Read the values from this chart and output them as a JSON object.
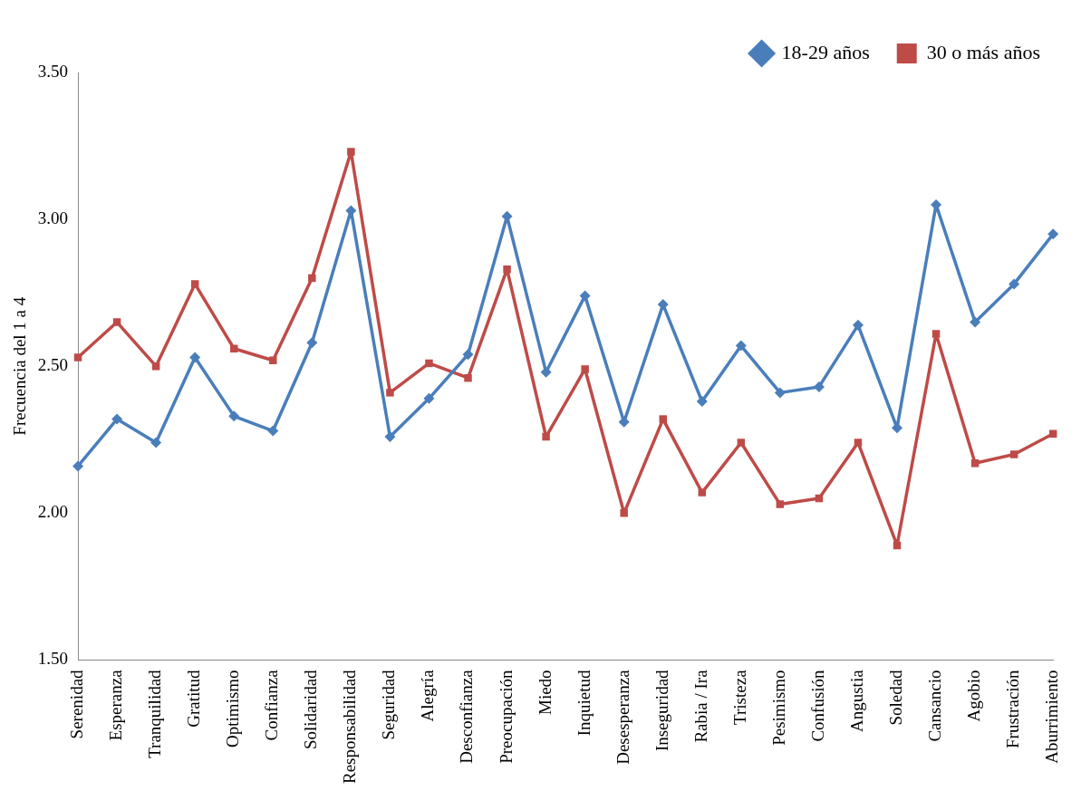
{
  "chart_data": {
    "type": "line",
    "ylabel": "Frecuencia del 1 a 4",
    "categories": [
      "Serenidad",
      "Esperanza",
      "Tranquilidad",
      "Gratitud",
      "Optimismo",
      "Confianza",
      "Solidaridad",
      "Responsabilidad",
      "Seguridad",
      "Alegría",
      "Desconfianza",
      "Preocupación",
      "Miedo",
      "Inquietud",
      "Desesperanza",
      "Inseguridad",
      "Rabia / Ira",
      "Tristeza",
      "Pesimismo",
      "Confusión",
      "Angustia",
      "Soledad",
      "Cansancio",
      "Agobio",
      "Frustración",
      "Aburrimiento"
    ],
    "series": [
      {
        "name": "18-29 años",
        "color": "#4a7ebb",
        "marker": "diamond",
        "values": [
          2.16,
          2.32,
          2.24,
          2.53,
          2.33,
          2.28,
          2.58,
          3.03,
          2.26,
          2.39,
          2.54,
          3.01,
          2.48,
          2.74,
          2.31,
          2.71,
          2.38,
          2.57,
          2.41,
          2.43,
          2.64,
          2.29,
          3.05,
          2.65,
          2.78,
          2.95
        ]
      },
      {
        "name": "30 o más años",
        "color": "#be4b48",
        "marker": "square",
        "values": [
          2.53,
          2.65,
          2.5,
          2.78,
          2.56,
          2.52,
          2.8,
          3.23,
          2.41,
          2.51,
          2.46,
          2.83,
          2.26,
          2.49,
          2.0,
          2.32,
          2.07,
          2.24,
          2.03,
          2.05,
          2.24,
          1.89,
          2.61,
          2.17,
          2.2,
          2.27
        ]
      }
    ],
    "ylim": [
      1.5,
      3.5
    ],
    "yticks": [
      {
        "value": 1.5,
        "label": "1.50"
      },
      {
        "value": 2,
        "label": "2.00"
      },
      {
        "value": 2.5,
        "label": "2.50"
      },
      {
        "value": 3,
        "label": "3.00"
      },
      {
        "value": 3.5,
        "label": "3.50"
      }
    ],
    "grid": false,
    "legend": "top right",
    "line_style": "solid"
  }
}
